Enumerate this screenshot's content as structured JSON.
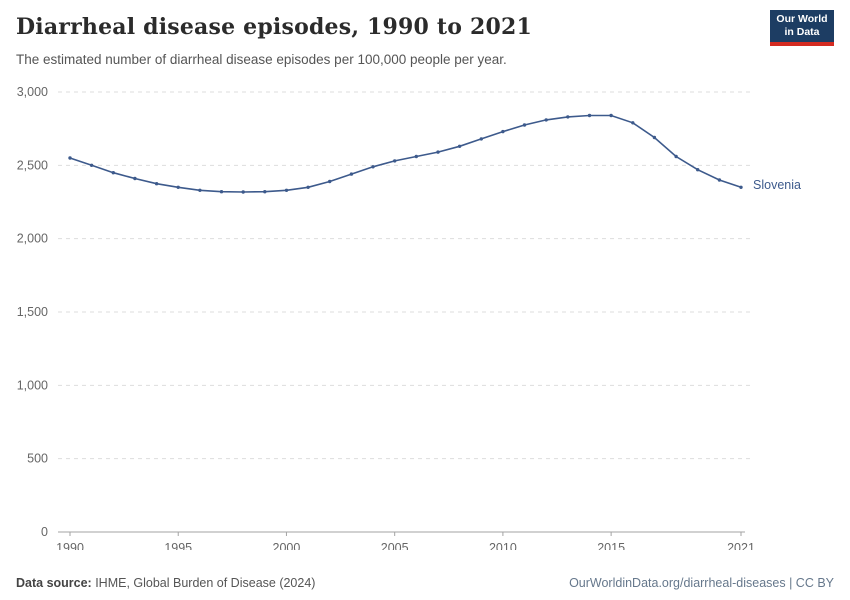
{
  "header": {
    "title": "Diarrheal disease episodes, 1990 to 2021",
    "subtitle": "The estimated number of diarrheal disease episodes per 100,000 people per year.",
    "logo": {
      "line1": "Our World",
      "line2": "in Data"
    }
  },
  "chart_data": {
    "type": "line",
    "title": "Diarrheal disease episodes, 1990 to 2021",
    "xlabel": "",
    "ylabel": "",
    "xlim": [
      1990,
      2021
    ],
    "ylim": [
      0,
      3000
    ],
    "x_ticks": [
      1990,
      1995,
      2000,
      2005,
      2010,
      2015,
      2021
    ],
    "y_ticks": [
      0,
      500,
      1000,
      1500,
      2000,
      2500,
      3000
    ],
    "y_tick_labels": [
      "0",
      "500",
      "1,000",
      "1,500",
      "2,000",
      "2,500",
      "3,000"
    ],
    "grid": "horizontal-dashed",
    "legend_position": "end-of-line-label",
    "end_label": "Slovenia",
    "series": [
      {
        "name": "Slovenia",
        "color": "#3d5a8c",
        "x": [
          1990,
          1991,
          1992,
          1993,
          1994,
          1995,
          1996,
          1997,
          1998,
          1999,
          2000,
          2001,
          2002,
          2003,
          2004,
          2005,
          2006,
          2007,
          2008,
          2009,
          2010,
          2011,
          2012,
          2013,
          2014,
          2015,
          2016,
          2017,
          2018,
          2019,
          2020,
          2021
        ],
        "values": [
          2550,
          2500,
          2450,
          2410,
          2375,
          2350,
          2330,
          2320,
          2318,
          2320,
          2330,
          2350,
          2390,
          2440,
          2490,
          2530,
          2560,
          2590,
          2630,
          2680,
          2730,
          2775,
          2810,
          2830,
          2840,
          2840,
          2790,
          2690,
          2560,
          2470,
          2400,
          2350
        ]
      }
    ]
  },
  "footer": {
    "source_label": "Data source:",
    "source_text": " IHME, Global Burden of Disease (2024)",
    "right_text": "OurWorldinData.org/diarrheal-diseases | CC BY"
  },
  "colors": {
    "line": "#3d5a8c",
    "grid": "#dddddd",
    "axis": "#a3a3a3",
    "tick_label": "#666666"
  }
}
